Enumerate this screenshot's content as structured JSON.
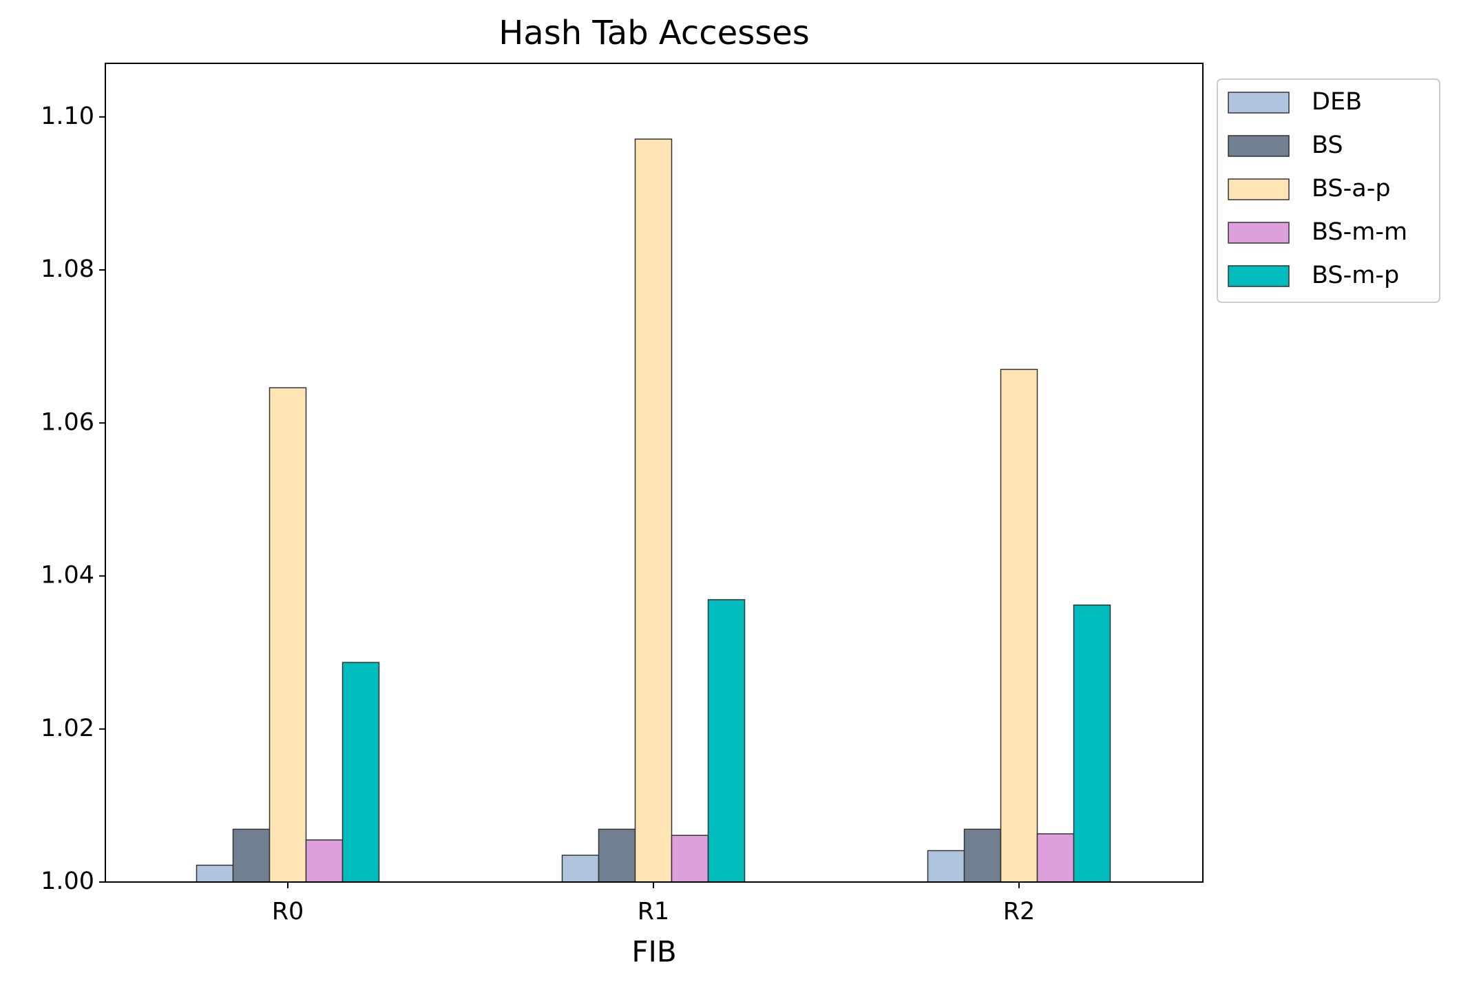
{
  "chart_data": {
    "type": "bar",
    "title": "Hash Tab Accesses",
    "x_label": "FIB",
    "categories": [
      "R0",
      "R1",
      "R2"
    ],
    "series": [
      {
        "name": "DEB",
        "color": "#b0c4de",
        "values": [
          1.0022,
          1.0035,
          1.0041
        ]
      },
      {
        "name": "BS",
        "color": "#708090",
        "values": [
          1.0069,
          1.0069,
          1.0069
        ]
      },
      {
        "name": "BS-a-p",
        "color": "#ffe4b5",
        "values": [
          1.0646,
          1.0971,
          1.067
        ]
      },
      {
        "name": "BS-m-m",
        "color": "#dda0dd",
        "values": [
          1.0055,
          1.0061,
          1.0063
        ]
      },
      {
        "name": "BS-m-p",
        "color": "#00bcbc",
        "values": [
          1.0287,
          1.0369,
          1.0362
        ]
      }
    ],
    "ylim": [
      1.0,
      1.107
    ],
    "yticks": [
      {
        "value": 1.0,
        "label": "1.00"
      },
      {
        "value": 1.02,
        "label": "1.02"
      },
      {
        "value": 1.04,
        "label": "1.04"
      },
      {
        "value": 1.06,
        "label": "1.06"
      },
      {
        "value": 1.08,
        "label": "1.08"
      },
      {
        "value": 1.1,
        "label": "1.10"
      }
    ],
    "grid": false,
    "legend": "outside-right",
    "edge_color": "#333333"
  }
}
